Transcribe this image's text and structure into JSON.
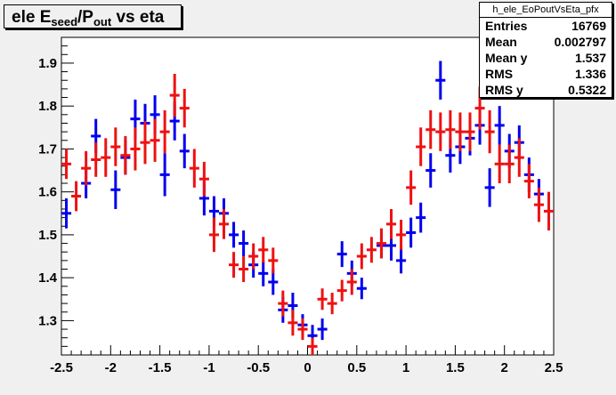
{
  "title": {
    "prefix": "ele E",
    "sub1": "seed",
    "mid": "/P",
    "sub2": "out",
    "suffix": " vs eta"
  },
  "stats": {
    "name": "h_ele_EoPoutVsEta_pfx",
    "rows": [
      {
        "label": "Entries",
        "value": "16769"
      },
      {
        "label": "Mean",
        "value": "0.002797"
      },
      {
        "label": "Mean y",
        "value": "1.537"
      },
      {
        "label": "RMS",
        "value": "1.336"
      },
      {
        "label": "RMS y",
        "value": "0.5322"
      }
    ]
  },
  "colors": {
    "series_a": "#0000ee",
    "series_b": "#ee1111",
    "frame_bg": "#ffffff",
    "page_bg": "#f0f0f0"
  },
  "chart_data": {
    "type": "scatter",
    "xlim": [
      -2.5,
      2.5
    ],
    "ylim": [
      1.22,
      1.96
    ],
    "x_ticks": [
      "-2.5",
      "-2",
      "-1.5",
      "-1",
      "-0.5",
      "0",
      "0.5",
      "1",
      "1.5",
      "2",
      "2.5"
    ],
    "y_ticks": [
      "1.3",
      "1.4",
      "1.5",
      "1.6",
      "1.7",
      "1.8",
      "1.9"
    ],
    "x_bin_half_width": 0.05,
    "series": [
      {
        "color": "blue",
        "points": [
          {
            "x": -2.45,
            "y": 1.55,
            "err": 0.035
          },
          {
            "x": -2.25,
            "y": 1.62,
            "err": 0.035
          },
          {
            "x": -2.15,
            "y": 1.73,
            "err": 0.04
          },
          {
            "x": -1.95,
            "y": 1.605,
            "err": 0.045
          },
          {
            "x": -1.85,
            "y": 1.68,
            "err": 0.04
          },
          {
            "x": -1.75,
            "y": 1.77,
            "err": 0.045
          },
          {
            "x": -1.65,
            "y": 1.76,
            "err": 0.045
          },
          {
            "x": -1.55,
            "y": 1.78,
            "err": 0.045
          },
          {
            "x": -1.45,
            "y": 1.64,
            "err": 0.05
          },
          {
            "x": -1.35,
            "y": 1.765,
            "err": 0.045
          },
          {
            "x": -1.25,
            "y": 1.695,
            "err": 0.04
          },
          {
            "x": -1.05,
            "y": 1.585,
            "err": 0.04
          },
          {
            "x": -0.95,
            "y": 1.555,
            "err": 0.035
          },
          {
            "x": -0.85,
            "y": 1.55,
            "err": 0.035
          },
          {
            "x": -0.75,
            "y": 1.5,
            "err": 0.03
          },
          {
            "x": -0.65,
            "y": 1.48,
            "err": 0.03
          },
          {
            "x": -0.55,
            "y": 1.43,
            "err": 0.03
          },
          {
            "x": -0.45,
            "y": 1.41,
            "err": 0.03
          },
          {
            "x": -0.35,
            "y": 1.39,
            "err": 0.03
          },
          {
            "x": -0.25,
            "y": 1.325,
            "err": 0.03
          },
          {
            "x": -0.15,
            "y": 1.335,
            "err": 0.03
          },
          {
            "x": -0.05,
            "y": 1.29,
            "err": 0.025
          },
          {
            "x": 0.05,
            "y": 1.265,
            "err": 0.025
          },
          {
            "x": 0.15,
            "y": 1.28,
            "err": 0.025
          },
          {
            "x": 0.35,
            "y": 1.455,
            "err": 0.03
          },
          {
            "x": 0.45,
            "y": 1.41,
            "err": 0.03
          },
          {
            "x": 0.55,
            "y": 1.375,
            "err": 0.025
          },
          {
            "x": 0.75,
            "y": 1.475,
            "err": 0.03
          },
          {
            "x": 0.85,
            "y": 1.475,
            "err": 0.035
          },
          {
            "x": 0.95,
            "y": 1.44,
            "err": 0.03
          },
          {
            "x": 1.05,
            "y": 1.505,
            "err": 0.035
          },
          {
            "x": 1.15,
            "y": 1.54,
            "err": 0.035
          },
          {
            "x": 1.25,
            "y": 1.65,
            "err": 0.04
          },
          {
            "x": 1.35,
            "y": 1.86,
            "err": 0.045
          },
          {
            "x": 1.45,
            "y": 1.685,
            "err": 0.04
          },
          {
            "x": 1.55,
            "y": 1.705,
            "err": 0.04
          },
          {
            "x": 1.65,
            "y": 1.725,
            "err": 0.04
          },
          {
            "x": 1.75,
            "y": 1.755,
            "err": 0.045
          },
          {
            "x": 1.85,
            "y": 1.61,
            "err": 0.045
          },
          {
            "x": 1.95,
            "y": 1.755,
            "err": 0.045
          },
          {
            "x": 2.05,
            "y": 1.695,
            "err": 0.04
          },
          {
            "x": 2.15,
            "y": 1.715,
            "err": 0.04
          },
          {
            "x": 2.25,
            "y": 1.64,
            "err": 0.04
          },
          {
            "x": 2.35,
            "y": 1.595,
            "err": 0.035
          }
        ]
      },
      {
        "color": "red",
        "points": [
          {
            "x": -2.45,
            "y": 1.665,
            "err": 0.035
          },
          {
            "x": -2.35,
            "y": 1.59,
            "err": 0.035
          },
          {
            "x": -2.25,
            "y": 1.655,
            "err": 0.04
          },
          {
            "x": -2.15,
            "y": 1.675,
            "err": 0.04
          },
          {
            "x": -2.05,
            "y": 1.68,
            "err": 0.045
          },
          {
            "x": -1.95,
            "y": 1.705,
            "err": 0.045
          },
          {
            "x": -1.85,
            "y": 1.685,
            "err": 0.045
          },
          {
            "x": -1.75,
            "y": 1.7,
            "err": 0.05
          },
          {
            "x": -1.65,
            "y": 1.715,
            "err": 0.05
          },
          {
            "x": -1.55,
            "y": 1.72,
            "err": 0.05
          },
          {
            "x": -1.45,
            "y": 1.74,
            "err": 0.05
          },
          {
            "x": -1.35,
            "y": 1.825,
            "err": 0.05
          },
          {
            "x": -1.25,
            "y": 1.795,
            "err": 0.045
          },
          {
            "x": -1.15,
            "y": 1.655,
            "err": 0.045
          },
          {
            "x": -1.05,
            "y": 1.63,
            "err": 0.04
          },
          {
            "x": -0.95,
            "y": 1.5,
            "err": 0.04
          },
          {
            "x": -0.85,
            "y": 1.525,
            "err": 0.035
          },
          {
            "x": -0.75,
            "y": 1.43,
            "err": 0.03
          },
          {
            "x": -0.65,
            "y": 1.42,
            "err": 0.03
          },
          {
            "x": -0.55,
            "y": 1.45,
            "err": 0.03
          },
          {
            "x": -0.45,
            "y": 1.465,
            "err": 0.03
          },
          {
            "x": -0.35,
            "y": 1.44,
            "err": 0.03
          },
          {
            "x": -0.25,
            "y": 1.34,
            "err": 0.03
          },
          {
            "x": -0.15,
            "y": 1.295,
            "err": 0.03
          },
          {
            "x": -0.05,
            "y": 1.28,
            "err": 0.025
          },
          {
            "x": 0.05,
            "y": 1.24,
            "err": 0.02
          },
          {
            "x": 0.15,
            "y": 1.35,
            "err": 0.025
          },
          {
            "x": 0.25,
            "y": 1.34,
            "err": 0.025
          },
          {
            "x": 0.35,
            "y": 1.37,
            "err": 0.025
          },
          {
            "x": 0.45,
            "y": 1.39,
            "err": 0.03
          },
          {
            "x": 0.55,
            "y": 1.45,
            "err": 0.03
          },
          {
            "x": 0.65,
            "y": 1.465,
            "err": 0.03
          },
          {
            "x": 0.75,
            "y": 1.48,
            "err": 0.035
          },
          {
            "x": 0.85,
            "y": 1.525,
            "err": 0.035
          },
          {
            "x": 0.95,
            "y": 1.5,
            "err": 0.035
          },
          {
            "x": 1.05,
            "y": 1.61,
            "err": 0.04
          },
          {
            "x": 1.15,
            "y": 1.705,
            "err": 0.045
          },
          {
            "x": 1.25,
            "y": 1.745,
            "err": 0.045
          },
          {
            "x": 1.35,
            "y": 1.74,
            "err": 0.045
          },
          {
            "x": 1.45,
            "y": 1.745,
            "err": 0.045
          },
          {
            "x": 1.55,
            "y": 1.74,
            "err": 0.045
          },
          {
            "x": 1.65,
            "y": 1.74,
            "err": 0.045
          },
          {
            "x": 1.75,
            "y": 1.795,
            "err": 0.05
          },
          {
            "x": 1.85,
            "y": 1.74,
            "err": 0.05
          },
          {
            "x": 1.95,
            "y": 1.665,
            "err": 0.045
          },
          {
            "x": 2.05,
            "y": 1.665,
            "err": 0.045
          },
          {
            "x": 2.15,
            "y": 1.68,
            "err": 0.045
          },
          {
            "x": 2.25,
            "y": 1.625,
            "err": 0.04
          },
          {
            "x": 2.35,
            "y": 1.57,
            "err": 0.04
          },
          {
            "x": 2.45,
            "y": 1.555,
            "err": 0.045
          }
        ]
      }
    ]
  }
}
